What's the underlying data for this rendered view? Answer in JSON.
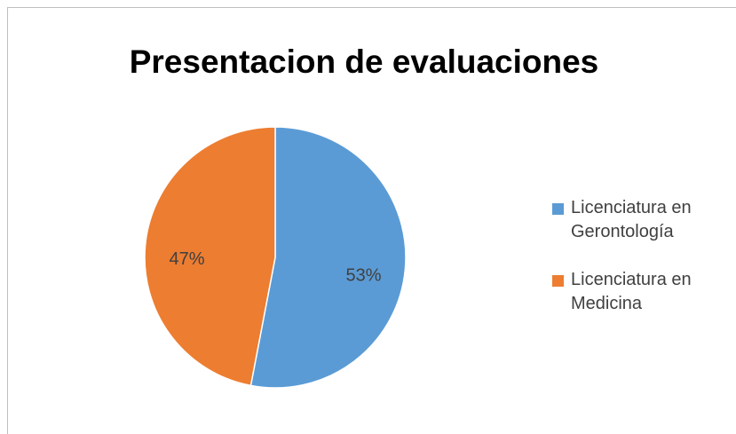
{
  "chart_data": {
    "type": "pie",
    "title": "Presentacion de evaluaciones",
    "categories": [
      "Licenciatura en Gerontología",
      "Licenciatura en Medicina"
    ],
    "values": [
      53,
      47
    ],
    "value_labels": [
      "53%",
      "47%"
    ],
    "colors": [
      "#5b9bd5",
      "#ed7d31"
    ],
    "legend": "right"
  }
}
